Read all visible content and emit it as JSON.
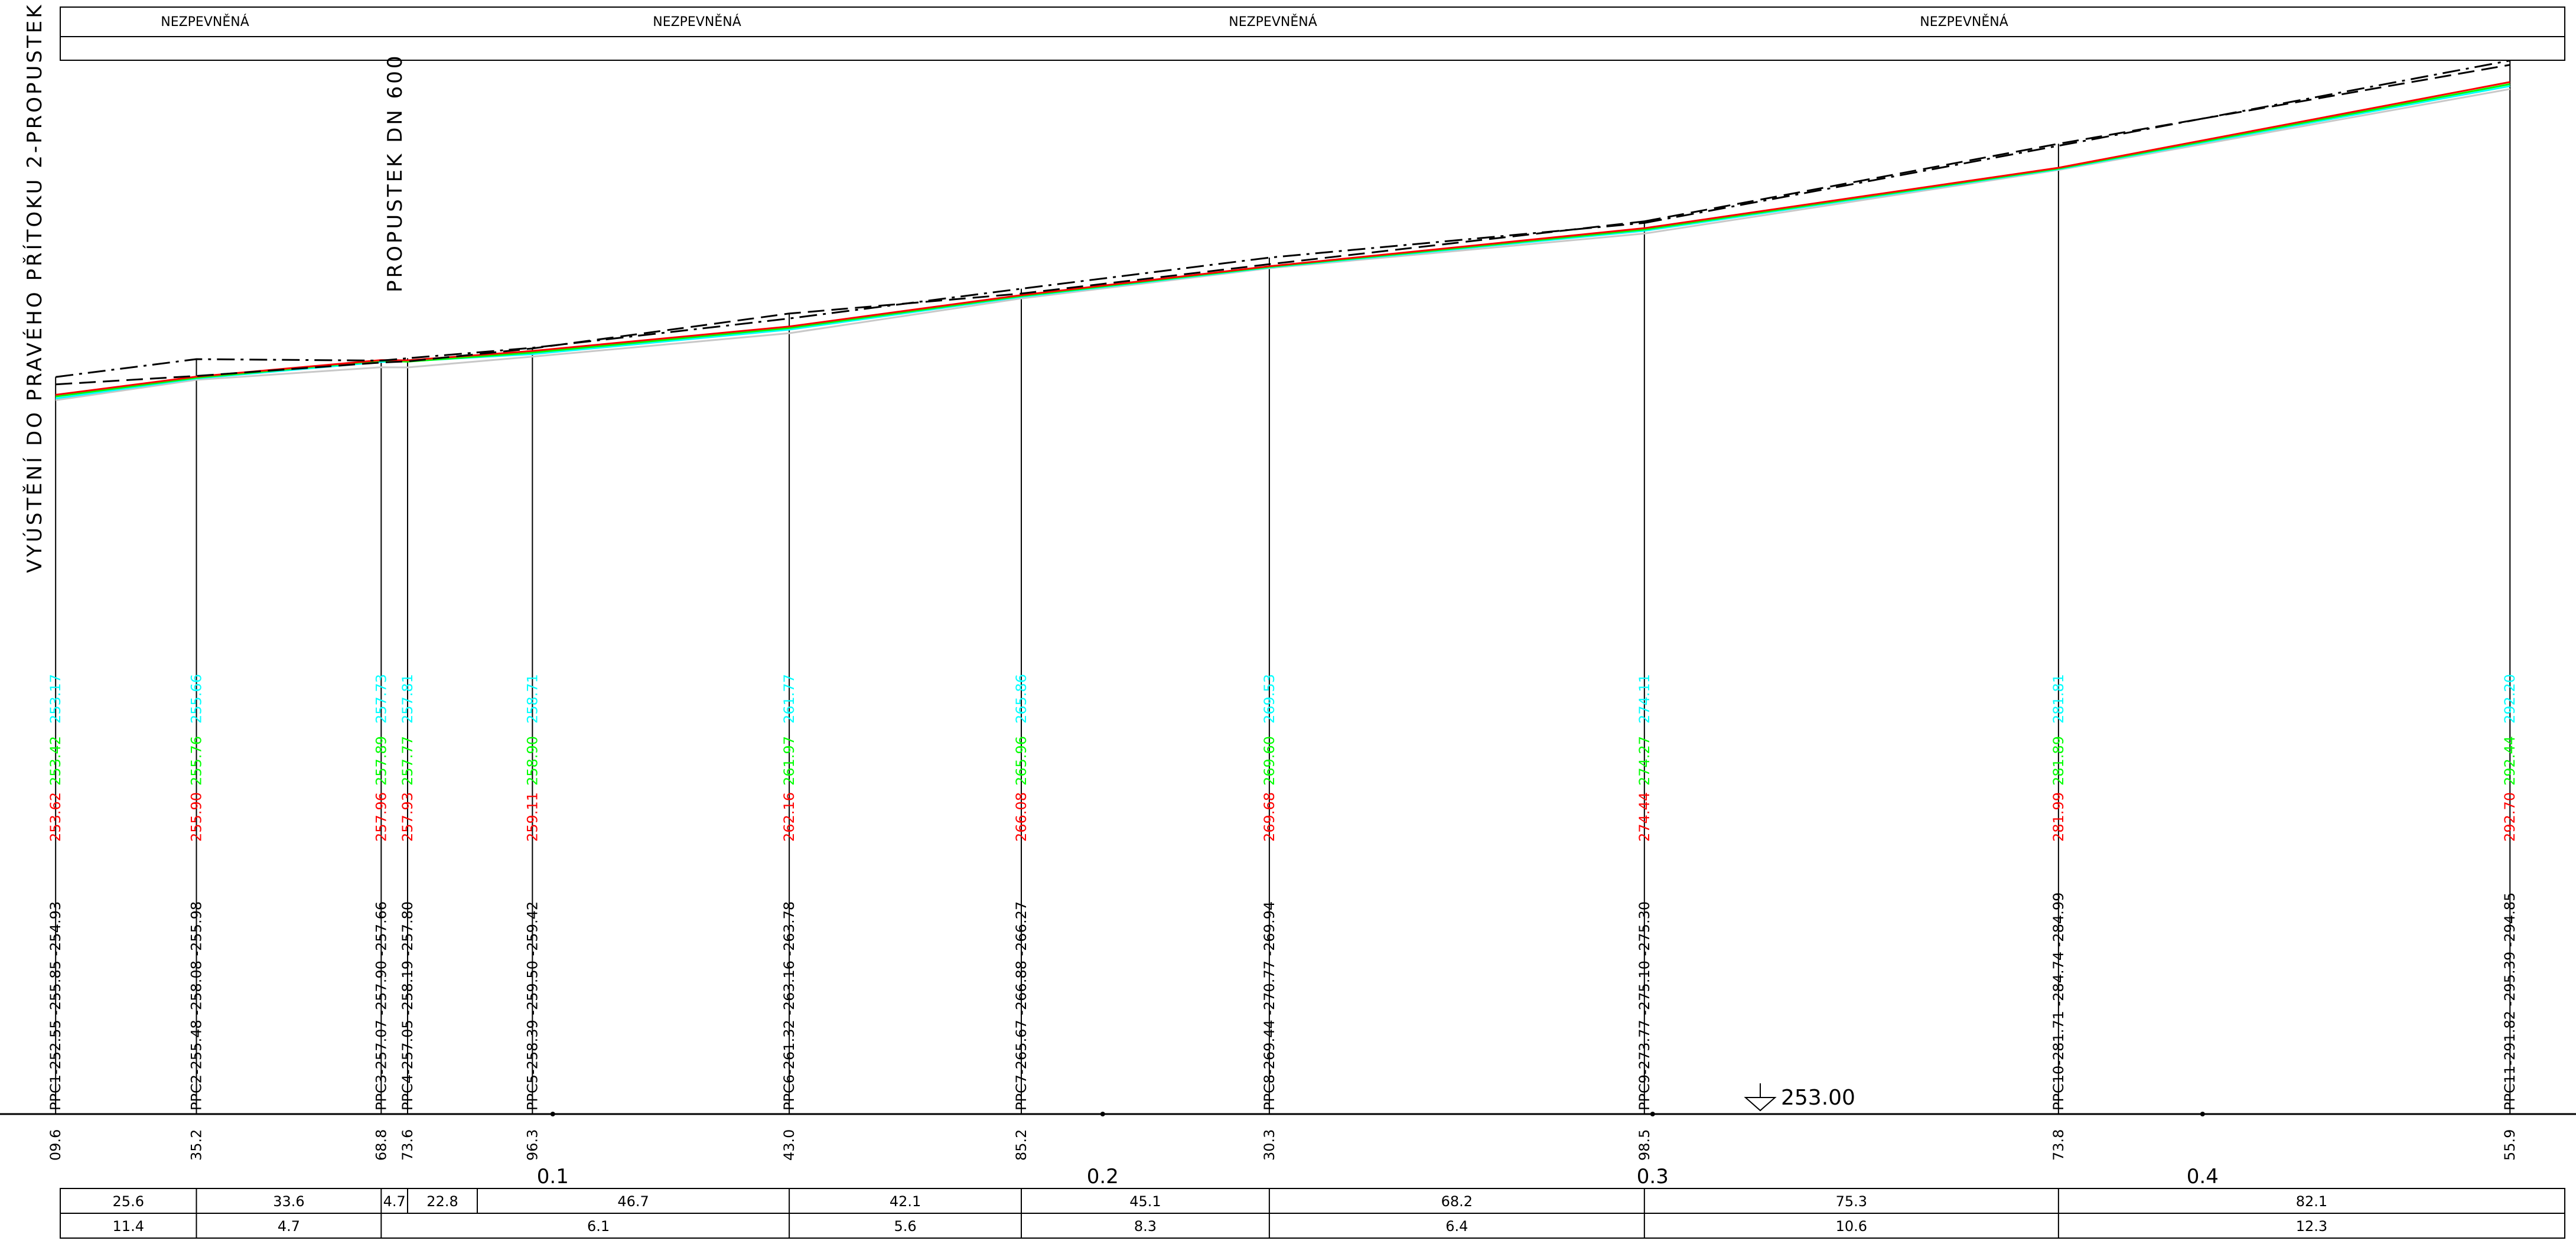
{
  "surface_labels": [
    {
      "text": "NEZPEVNĚNÁ"
    },
    {
      "text": "NEZPEVNĚNÁ"
    },
    {
      "text": "NEZPEVNĚNÁ"
    },
    {
      "text": "NEZPEVNĚNÁ"
    }
  ],
  "notes": {
    "outlet": "VYÚSTĚNÍ DO PRAVÉHO PŘÍTOKU 2-PROPUSTEK",
    "culvert": "PROPUSTEK DN 600"
  },
  "datum": "253.00",
  "km_labels": [
    "0.1",
    "0.2",
    "0.3",
    "0.4"
  ],
  "colors": {
    "red": "#ff0000",
    "green": "#00ff00",
    "cyan": "#00ffff",
    "gray": "#c8c8c8",
    "ink": "#000000"
  },
  "profiles": [
    {
      "name": "PPC1",
      "station": 0.0096,
      "cyan": "253.17",
      "green": "253.42",
      "red": "253.62",
      "label": "PPC1-252.55 -255.85 -254.93",
      "chainage": "09.6",
      "terrain": 254.93,
      "left_terrain": 255.85,
      "bottom": 252.55,
      "red_line": 253.62,
      "green_line": 253.42,
      "cyan_line": 253.17,
      "gray_line": 252.95
    },
    {
      "name": "PPC2",
      "station": 0.0352,
      "cyan": "255.66",
      "green": "255.76",
      "red": "255.90",
      "label": "PPC2-255.48 -258.08 -255.98",
      "chainage": "35.2",
      "terrain": 255.98,
      "left_terrain": 258.08,
      "bottom": 255.48,
      "red_line": 255.9,
      "green_line": 255.76,
      "cyan_line": 255.66,
      "gray_line": 255.5
    },
    {
      "name": "PPC3",
      "station": 0.0688,
      "cyan": "257.73",
      "green": "257.89",
      "red": "257.96",
      "label": "PPC3-257.07 -257.90 -257.66",
      "chainage": "68.8",
      "terrain": 257.66,
      "left_terrain": 257.9,
      "bottom": 257.07,
      "red_line": 257.96,
      "green_line": 257.89,
      "cyan_line": 257.73,
      "gray_line": 257.07
    },
    {
      "name": "PPC4",
      "station": 0.0736,
      "cyan": "257.81",
      "green": "257.77",
      "red": "257.93",
      "label": "PPC4-257.05 -258.19 -257.80",
      "chainage": "73.6",
      "terrain": 257.8,
      "left_terrain": 258.19,
      "bottom": 257.05,
      "red_line": 257.93,
      "green_line": 257.77,
      "cyan_line": 257.81,
      "gray_line": 257.05
    },
    {
      "name": "PPC5",
      "station": 0.0963,
      "cyan": "258.71",
      "green": "258.90",
      "red": "259.11",
      "label": "PPC5-258.39 -259.50 -259.42",
      "chainage": "96.3",
      "terrain": 259.42,
      "left_terrain": 259.5,
      "bottom": 258.39,
      "red_line": 259.11,
      "green_line": 258.9,
      "cyan_line": 258.71,
      "gray_line": 258.39
    },
    {
      "name": "PPC6",
      "station": 0.143,
      "cyan": "261.77",
      "green": "261.97",
      "red": "262.16",
      "label": "PPC6-261.32 -263.16 -263.78",
      "chainage": "43.0",
      "terrain": 263.78,
      "left_terrain": 263.16,
      "bottom": 261.32,
      "red_line": 262.16,
      "green_line": 261.97,
      "cyan_line": 261.77,
      "gray_line": 261.32
    },
    {
      "name": "PPC7",
      "station": 0.1852,
      "cyan": "265.86",
      "green": "265.96",
      "red": "266.08",
      "label": "PPC7-265.67 -266.88 -266.27",
      "chainage": "85.2",
      "terrain": 266.27,
      "left_terrain": 266.88,
      "bottom": 265.67,
      "red_line": 266.08,
      "green_line": 265.96,
      "cyan_line": 265.86,
      "gray_line": 265.67
    },
    {
      "name": "PPC8",
      "station": 0.2303,
      "cyan": "269.53",
      "green": "269.60",
      "red": "269.68",
      "label": "PPC8-269.44 -270.77 -269.94",
      "chainage": "30.3",
      "terrain": 269.94,
      "left_terrain": 270.77,
      "bottom": 269.44,
      "red_line": 269.68,
      "green_line": 269.6,
      "cyan_line": 269.53,
      "gray_line": 269.44
    },
    {
      "name": "PPC9",
      "station": 0.2985,
      "cyan": "274.11",
      "green": "274.27",
      "red": "274.44",
      "label": "PPC9-273.77 -275.10 -275.30",
      "chainage": "98.5",
      "terrain": 275.3,
      "left_terrain": 275.1,
      "bottom": 273.77,
      "red_line": 274.44,
      "green_line": 274.27,
      "cyan_line": 274.11,
      "gray_line": 273.77
    },
    {
      "name": "PPC10",
      "station": 0.3738,
      "cyan": "281.81",
      "green": "281.89",
      "red": "281.99",
      "label": "PPC10-281.71 -284.74 -284.99",
      "chainage": "73.8",
      "terrain": 284.99,
      "left_terrain": 284.74,
      "bottom": 281.71,
      "red_line": 281.99,
      "green_line": 281.89,
      "cyan_line": 281.81,
      "gray_line": 281.71
    },
    {
      "name": "PPC11",
      "station": 0.4559,
      "cyan": "292.20",
      "green": "292.44",
      "red": "292.70",
      "label": "PPC11-291.82 -295.39 -294.85",
      "chainage": "55.9",
      "terrain": 294.85,
      "left_terrain": 295.39,
      "bottom": 291.82,
      "red_line": 292.7,
      "green_line": 292.44,
      "cyan_line": 292.2,
      "gray_line": 291.82
    }
  ],
  "table": {
    "row1": [
      {
        "text": "25.6",
        "from": 0,
        "to": 1
      },
      {
        "text": "33.6",
        "from": 1,
        "to": 2
      },
      {
        "text": "4.7",
        "from": 2,
        "to": 3
      },
      {
        "text": "22.8",
        "from": 3,
        "to": 3.5
      },
      {
        "text": "46.7",
        "from": 3.5,
        "to": 5
      },
      {
        "text": "42.1",
        "from": 5,
        "to": 6
      },
      {
        "text": "45.1",
        "from": 6,
        "to": 7
      },
      {
        "text": "68.2",
        "from": 7,
        "to": 8
      },
      {
        "text": "75.3",
        "from": 8,
        "to": 9
      },
      {
        "text": "82.1",
        "from": 9,
        "to": 10
      }
    ],
    "row2": [
      {
        "text": "11.4",
        "from": 0,
        "to": 1
      },
      {
        "text": "4.7",
        "from": 1,
        "to": 2
      },
      {
        "text": "6.1",
        "from": 3,
        "to": 5
      },
      {
        "text": "5.6",
        "from": 5,
        "to": 6
      },
      {
        "text": "8.3",
        "from": 6,
        "to": 7
      },
      {
        "text": "6.4",
        "from": 7,
        "to": 8
      },
      {
        "text": "10.6",
        "from": 8,
        "to": 9
      },
      {
        "text": "12.3",
        "from": 9,
        "to": 10
      }
    ]
  }
}
